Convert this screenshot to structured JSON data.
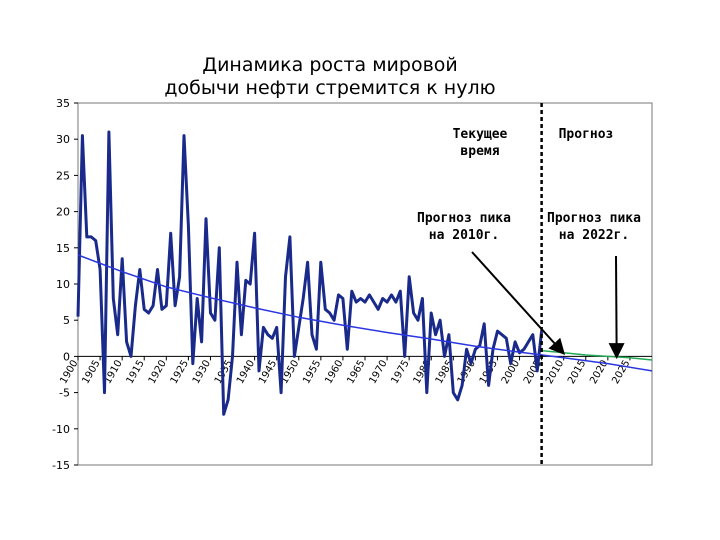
{
  "chart_data": {
    "type": "line",
    "title_lines": [
      "Динамика роста мировой",
      "добычи нефти стремится к нулю"
    ],
    "xlabel": "",
    "ylabel": "",
    "xlim": [
      1900,
      2030
    ],
    "ylim": [
      -15,
      35
    ],
    "y_ticks": [
      35,
      30,
      25,
      20,
      15,
      10,
      5,
      0,
      -5,
      -10,
      -15
    ],
    "x_ticks": [
      1900,
      1905,
      1910,
      1915,
      1920,
      1925,
      1930,
      1935,
      1940,
      1945,
      1950,
      1955,
      1960,
      1965,
      1970,
      1975,
      1980,
      1985,
      1990,
      1995,
      2000,
      2005,
      2010,
      2015,
      2020,
      2025
    ],
    "x_tick_labels": [
      "1900",
      "1905",
      "1910",
      "1915",
      "1920",
      "1925",
      "1930",
      "1935",
      "1940",
      "1945",
      "1950",
      "1955",
      "1960",
      "1965",
      "1970",
      "1975",
      "1980",
      "1985",
      "1990",
      "1995",
      "2000",
      "2005",
      "2010",
      "2015",
      "2020",
      "2025"
    ],
    "grid": false,
    "divider_x": 2005,
    "series": [
      {
        "type": "line",
        "color": "#1a2a8a",
        "x": [
          1900,
          1901,
          1902,
          1903,
          1904,
          1905,
          1906,
          1907,
          1908,
          1909,
          1910,
          1911,
          1912,
          1913,
          1914,
          1915,
          1916,
          1917,
          1918,
          1919,
          1920,
          1921,
          1922,
          1923,
          1924,
          1925,
          1926,
          1927,
          1928,
          1929,
          1930,
          1931,
          1932,
          1933,
          1934,
          1935,
          1936,
          1937,
          1938,
          1939,
          1940,
          1941,
          1942,
          1943,
          1944,
          1945,
          1946,
          1947,
          1948,
          1949,
          1950,
          1951,
          1952,
          1953,
          1954,
          1955,
          1956,
          1957,
          1958,
          1959,
          1960,
          1961,
          1962,
          1963,
          1964,
          1965,
          1966,
          1967,
          1968,
          1969,
          1970,
          1971,
          1972,
          1973,
          1974,
          1975,
          1976,
          1977,
          1978,
          1979,
          1980,
          1981,
          1982,
          1983,
          1984,
          1985,
          1986,
          1987,
          1988,
          1989,
          1990,
          1991,
          1992,
          1993,
          1994,
          1995,
          1996,
          1997,
          1998,
          1999,
          2000,
          2001,
          2002,
          2003,
          2004,
          2005
        ],
        "values": [
          5.5,
          30.5,
          16.5,
          16.5,
          16,
          12,
          -5,
          31,
          8,
          3,
          13.5,
          2,
          0,
          7,
          12,
          6.5,
          6,
          7,
          12,
          6.5,
          7,
          17,
          7,
          11,
          30.5,
          18,
          -1,
          8,
          2,
          19,
          6,
          5,
          15,
          -8,
          -6,
          0,
          13,
          3,
          10.5,
          10,
          17,
          -2,
          4,
          3,
          2.5,
          4,
          -5,
          11,
          16.5,
          0,
          4,
          8,
          13,
          3,
          1,
          13,
          6.5,
          6,
          5,
          8.5,
          8,
          1,
          9,
          7.5,
          8,
          7.5,
          8.5,
          7.5,
          6.5,
          8,
          7.5,
          8.5,
          7.5,
          9,
          0,
          11,
          6,
          5,
          8,
          -5,
          6,
          3,
          5,
          0,
          3,
          -5,
          -6,
          -4,
          1,
          -1,
          1,
          1.5,
          4.5,
          -4,
          1,
          3.5,
          3,
          2.5,
          -1,
          2,
          0.5,
          1,
          2,
          3,
          -2,
          3.5
        ]
      },
      {
        "type": "line",
        "color": "#2a36e0",
        "x": [
          1900,
          1910,
          1920,
          1930,
          1940,
          1950,
          1960,
          1970,
          1980,
          1990,
          2000,
          2010,
          2020,
          2030
        ],
        "values": [
          14,
          11.7,
          9.6,
          8.1,
          6.7,
          5.4,
          4.3,
          3.3,
          2.4,
          1.4,
          0.6,
          -0.2,
          -1.0,
          -2.0
        ]
      },
      {
        "type": "line",
        "color": "#22aa55",
        "x": [
          2005,
          2010,
          2015,
          2020,
          2025,
          2030
        ],
        "values": [
          0.8,
          0.5,
          0.2,
          0.0,
          -0.2,
          -0.5
        ]
      }
    ],
    "annotations": [
      {
        "id": "current",
        "lines": [
          "Текущее",
          "время"
        ]
      },
      {
        "id": "forecast",
        "lines": [
          "Прогноз"
        ]
      },
      {
        "id": "peak2010",
        "lines": [
          "Прогноз пика",
          "на 2010г."
        ],
        "points_to": [
          2010,
          0.4
        ]
      },
      {
        "id": "peak2022",
        "lines": [
          "Прогноз пика",
          "на 2022г."
        ],
        "points_to": [
          2022,
          -0.1
        ]
      }
    ]
  }
}
